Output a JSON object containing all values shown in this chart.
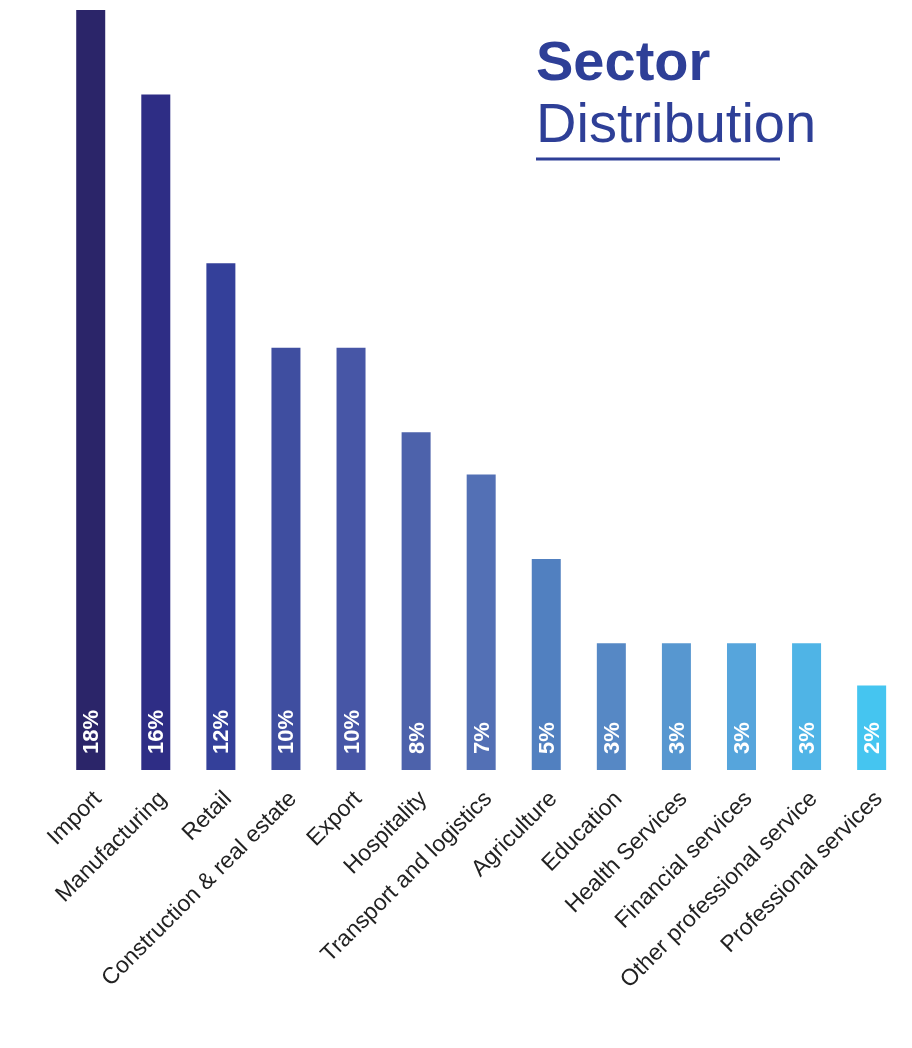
{
  "chart_data": {
    "type": "bar",
    "title": "Sector",
    "subtitle": "Distribution",
    "categories": [
      "Import",
      "Manufacturing",
      "Retail",
      "Construction & real estate",
      "Export",
      "Hospitality",
      "Transport and logistics",
      "Agriculture",
      "Education",
      "Health Services",
      "Financial services",
      "Other professional service",
      "Professional services"
    ],
    "values": [
      18,
      16,
      12,
      10,
      10,
      8,
      7,
      5,
      3,
      3,
      3,
      3,
      2
    ],
    "value_labels": [
      "18%",
      "16%",
      "12%",
      "10%",
      "10%",
      "8%",
      "7%",
      "5%",
      "3%",
      "3%",
      "3%",
      "3%",
      "2%"
    ],
    "colors": [
      "#2b2569",
      "#2e2d85",
      "#34409a",
      "#3f4ea0",
      "#4756a6",
      "#4d62ab",
      "#5370b5",
      "#5180c0",
      "#5688c5",
      "#5797d0",
      "#56a5dc",
      "#4fb4e6",
      "#45c5f0"
    ],
    "grid": false,
    "legend": false
  }
}
